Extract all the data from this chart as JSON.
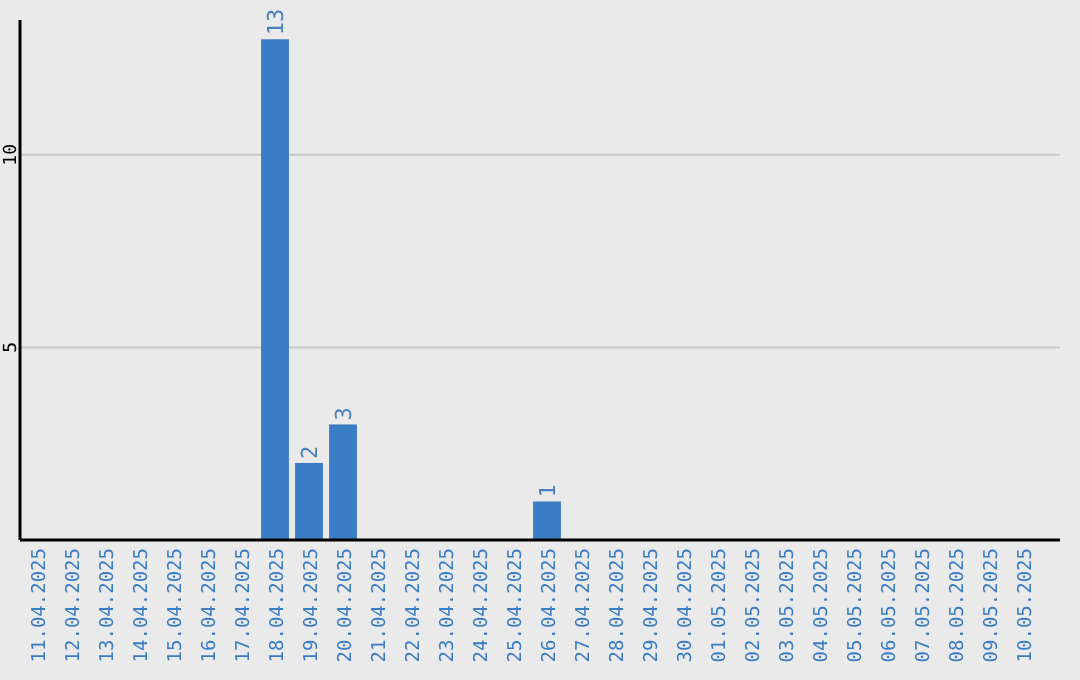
{
  "chart_data": {
    "type": "bar",
    "categories": [
      "11.04.2025",
      "12.04.2025",
      "13.04.2025",
      "14.04.2025",
      "15.04.2025",
      "16.04.2025",
      "17.04.2025",
      "18.04.2025",
      "19.04.2025",
      "20.04.2025",
      "21.04.2025",
      "22.04.2025",
      "23.04.2025",
      "24.04.2025",
      "25.04.2025",
      "26.04.2025",
      "27.04.2025",
      "28.04.2025",
      "29.04.2025",
      "30.04.2025",
      "01.05.2025",
      "02.05.2025",
      "03.05.2025",
      "04.05.2025",
      "05.05.2025",
      "06.05.2025",
      "07.05.2025",
      "08.05.2025",
      "09.05.2025",
      "10.05.2025"
    ],
    "values": [
      0,
      0,
      0,
      0,
      0,
      0,
      0,
      13,
      2,
      3,
      0,
      0,
      0,
      0,
      0,
      1,
      0,
      0,
      0,
      0,
      0,
      0,
      0,
      0,
      0,
      0,
      0,
      0,
      0,
      0
    ],
    "value_labels": [
      null,
      null,
      null,
      null,
      null,
      null,
      null,
      "13",
      "2",
      "3",
      null,
      null,
      null,
      null,
      null,
      "1",
      null,
      null,
      null,
      null,
      null,
      null,
      null,
      null,
      null,
      null,
      null,
      null,
      null,
      null
    ],
    "color": "#3b7dc4",
    "ylim": [
      0,
      13.5
    ],
    "yticks": [
      5,
      10
    ],
    "grid": "y"
  }
}
